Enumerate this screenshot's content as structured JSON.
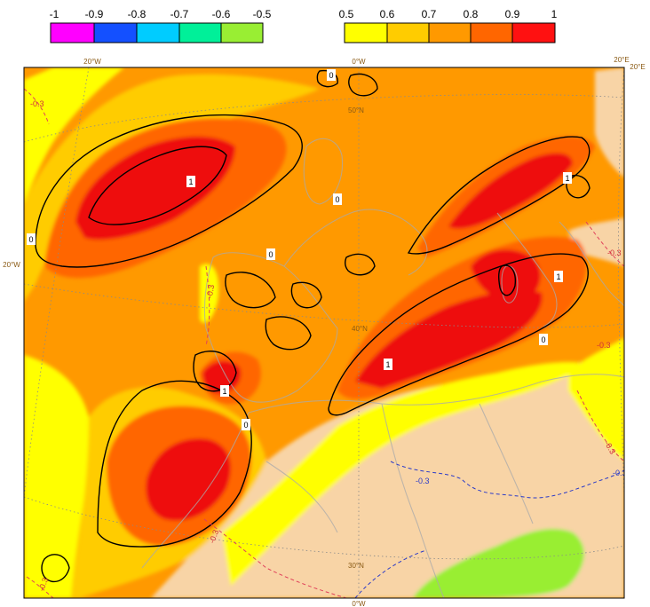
{
  "legend_negative": {
    "colors": [
      "#ff00ff",
      "#1450ff",
      "#00ccff",
      "#00f099",
      "#99ee33"
    ],
    "ticks": [
      "-1",
      "-0.9",
      "-0.8",
      "-0.7",
      "-0.6",
      "-0.5"
    ]
  },
  "legend_positive": {
    "colors": [
      "#ffff00",
      "#ffcc00",
      "#ff9900",
      "#ff6600",
      "#ff1111"
    ],
    "ticks": [
      "0.5",
      "0.6",
      "0.7",
      "0.8",
      "0.9",
      "1"
    ]
  },
  "map": {
    "colors": {
      "land_below": "#f8d4a6",
      "c50": "#ffff00",
      "c60": "#ffcc00",
      "c70": "#ff9900",
      "c80": "#ff6600",
      "c90": "#ee1010",
      "greenzone": "#99ee33",
      "coast": "#aaaaaa",
      "contour": "#000000"
    },
    "lon_labels": {
      "w20_top": "20°W",
      "zero_top": "0°W",
      "e20_a": "20°E",
      "e20_b": "20°E",
      "zero_bottom": "0°W"
    },
    "lat_labels": {
      "n50": "50°N",
      "n40": "40°N",
      "n30": "30°N",
      "w20_left": "20°W"
    },
    "contour_labels": {
      "one": "1",
      "zero": "0",
      "neg03": "-0.3"
    }
  }
}
